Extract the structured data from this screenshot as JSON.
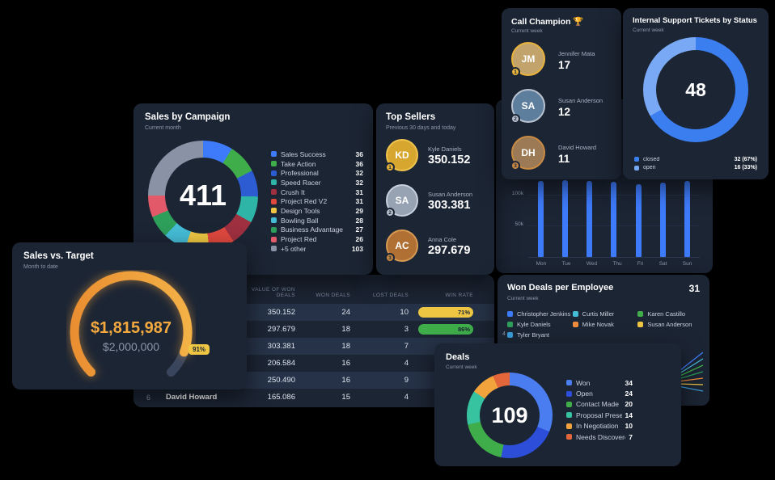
{
  "colors": {
    "accent_blue": "#3E7BFA",
    "gold": "#E8B33C",
    "silver": "#B9C2CE",
    "bronze": "#C98A44",
    "gauge_orange": "#F2A33C",
    "badge_yellow": "#EEC643"
  },
  "cards": {
    "sales_by_campaign": {
      "title": "Sales by Campaign",
      "subtitle": "Current month"
    },
    "top_sellers": {
      "title": "Top Sellers",
      "subtitle": "Previous 30 days and today",
      "sellers": [
        {
          "initials": "KD",
          "rank": "1",
          "name": "Kyle Daniels",
          "value": "350.152",
          "ring": "#EFC44F",
          "avatar_bg": "#D7A62E",
          "badge": "#E8B33C"
        },
        {
          "initials": "SA",
          "rank": "2",
          "name": "Susan Anderson",
          "value": "303.381",
          "ring": "#C6D0DC",
          "avatar_bg": "#97A2B2",
          "badge": "#B9C2CE"
        },
        {
          "initials": "AC",
          "rank": "3",
          "name": "Anna Cole",
          "value": "297.679",
          "ring": "#D79A55",
          "avatar_bg": "#B06F33",
          "badge": "#C98A44"
        }
      ]
    },
    "call_champion": {
      "title": "Call Champion 🏆",
      "subtitle": "Current week",
      "people": [
        {
          "initials": "JM",
          "rank": "1",
          "name": "Jennifer Mata",
          "value": "17",
          "ring": "#E8B33C",
          "avatar_bg": "#C2A36B",
          "badge": "#E8B33C"
        },
        {
          "initials": "SA",
          "rank": "2",
          "name": "Susan Anderson",
          "value": "12",
          "ring": "#B9C2CE",
          "avatar_bg": "#5E7E9E",
          "badge": "#B9C2CE"
        },
        {
          "initials": "DH",
          "rank": "3",
          "name": "David Howard",
          "value": "11",
          "ring": "#C98A44",
          "avatar_bg": "#9C7A55",
          "badge": "#C98A44"
        }
      ]
    },
    "support": {
      "title": "Internal Support Tickets by Status",
      "subtitle": "Current week"
    },
    "sales_vs_target": {
      "title": "Sales vs. Target",
      "subtitle": "Month to date"
    },
    "won_deals": {
      "title": "Won Deals per Employee",
      "subtitle": "Current week"
    },
    "deals": {
      "title": "Deals",
      "subtitle": "Current week"
    }
  },
  "chart_data": [
    {
      "name": "sales_by_campaign",
      "type": "donut",
      "title": "Sales by Campaign",
      "total": "411",
      "legend_position": "right",
      "items": [
        {
          "label": "Sales Success",
          "value": 36,
          "color": "#3E7BFA"
        },
        {
          "label": "Take Action",
          "value": 36,
          "color": "#3FAE4A"
        },
        {
          "label": "Professional",
          "value": 32,
          "color": "#2D5BD1"
        },
        {
          "label": "Speed Racer",
          "value": 32,
          "color": "#2FB5A8"
        },
        {
          "label": "Crush It",
          "value": 31,
          "color": "#9E3040"
        },
        {
          "label": "Project Red V2",
          "value": 31,
          "color": "#E0483E"
        },
        {
          "label": "Design Tools",
          "value": 29,
          "color": "#EEC643"
        },
        {
          "label": "Bowling Ball",
          "value": 28,
          "color": "#45BCD6"
        },
        {
          "label": "Business Advantage",
          "value": 27,
          "color": "#2E9E5B"
        },
        {
          "label": "Project Red",
          "value": 26,
          "color": "#E25A6A"
        },
        {
          "label": "+5 other",
          "value": 103,
          "color": "#8A93A6"
        }
      ]
    },
    {
      "name": "support_tickets",
      "type": "donut",
      "title": "Internal Support Tickets by Status",
      "total": "48",
      "legend_position": "bottom",
      "items": [
        {
          "label": "closed",
          "value": 32,
          "display": "32 (67%)",
          "color": "#3B7EF0"
        },
        {
          "label": "open",
          "value": 16,
          "display": "16 (33%)",
          "color": "#79A9F5"
        }
      ]
    },
    {
      "name": "weekly_activity",
      "type": "bar",
      "x": [
        "Mon",
        "Tue",
        "Wed",
        "Thu",
        "Fri",
        "Sat",
        "Sun"
      ],
      "values": [
        122000,
        123500,
        122000,
        121000,
        117500,
        120000,
        122000
      ],
      "y_ticks": [
        "100k",
        "50k"
      ],
      "bar_color": "#3E7BFA"
    },
    {
      "name": "sales_vs_target",
      "type": "gauge",
      "title": "Sales vs. Target",
      "value": "$1,815,987",
      "target": "$2,000,000",
      "pct": 91,
      "pct_label": "91%"
    },
    {
      "name": "deals_table",
      "type": "table",
      "headers": [
        "VALUE OF WON DEALS",
        "WON DEALS",
        "LOST DEALS",
        "WIN RATE"
      ],
      "rows": [
        {
          "rank": "",
          "name": "",
          "value": "350.152",
          "won": "24",
          "lost": "10",
          "rate": 71,
          "rate_label": "71%",
          "rate_color": "#EEC643"
        },
        {
          "rank": "",
          "name": "",
          "value": "297.679",
          "won": "18",
          "lost": "3",
          "rate": 86,
          "rate_label": "86%",
          "rate_color": "#3FAE4A"
        },
        {
          "rank": "",
          "name": "",
          "value": "303.381",
          "won": "18",
          "lost": "7"
        },
        {
          "rank": "",
          "name": "",
          "value": "206.584",
          "won": "16",
          "lost": "4"
        },
        {
          "rank": "",
          "name": "",
          "value": "250.490",
          "won": "16",
          "lost": "9"
        },
        {
          "rank": "6",
          "name": "David Howard",
          "value": "165.086",
          "won": "15",
          "lost": "4"
        }
      ]
    },
    {
      "name": "won_deals",
      "type": "line",
      "title": "Won Deals per Employee",
      "total": "31",
      "y_tick": "4",
      "items": [
        {
          "label": "Christopher Jenkins",
          "color": "#3E7BFA"
        },
        {
          "label": "Curtis Miller",
          "color": "#45BCD6"
        },
        {
          "label": "Karen Castillo",
          "color": "#3FAE4A"
        },
        {
          "label": "Kyle Daniels",
          "color": "#2E9E5B"
        },
        {
          "label": "Mike Novak",
          "color": "#F08C3C"
        },
        {
          "label": "Susan Anderson",
          "color": "#EEC643"
        },
        {
          "label": "Tyler Bryant",
          "color": "#3A9BD8"
        }
      ]
    },
    {
      "name": "deals",
      "type": "donut",
      "title": "Deals",
      "total": "109",
      "legend_position": "right",
      "items": [
        {
          "label": "Won",
          "value": 34,
          "color": "#4A7DF0"
        },
        {
          "label": "Open",
          "value": 24,
          "color": "#2C4ED8"
        },
        {
          "label": "Contact Made",
          "value": 20,
          "color": "#3FAE4A"
        },
        {
          "label": "Proposal Presented",
          "value": 14,
          "color": "#37C2A0"
        },
        {
          "label": "In Negotiation",
          "value": 10,
          "color": "#F2A33C"
        },
        {
          "label": "Needs Discovered",
          "value": 7,
          "color": "#E2663A"
        }
      ]
    }
  ]
}
